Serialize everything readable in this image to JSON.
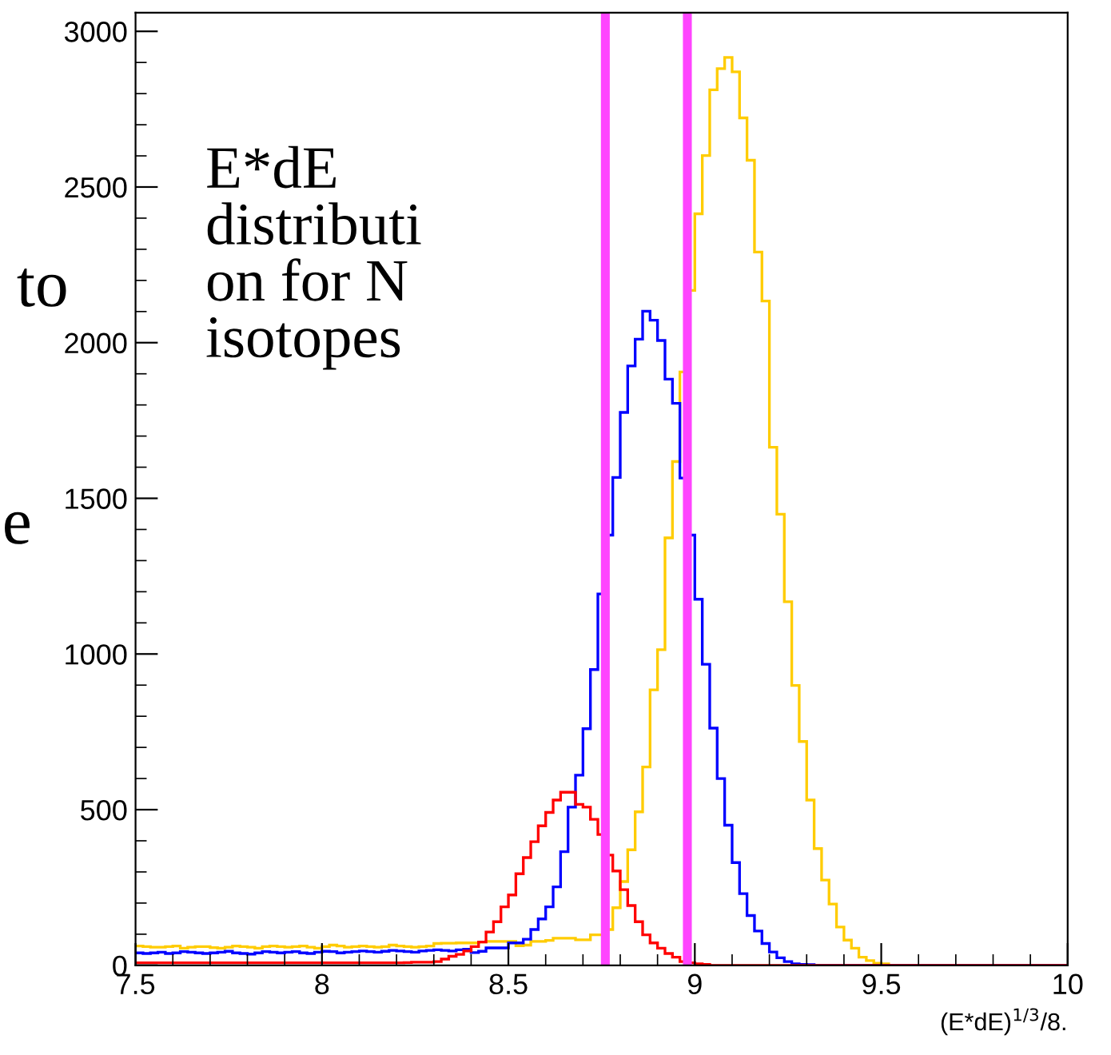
{
  "chart_data": {
    "type": "histogram",
    "xlabel": "(E*dE)$^{1/3}$/8.",
    "annotations": [
      "E*dE\ndistributi\non for N\nisotopes",
      "to",
      "e"
    ],
    "xlim": [
      7.5,
      10
    ],
    "ylim": [
      0,
      3060
    ],
    "xticks": [
      7.5,
      8,
      8.5,
      9,
      9.5,
      10
    ],
    "yticks": [
      0,
      500,
      1000,
      1500,
      2000,
      2500,
      3000
    ],
    "grid": false,
    "legend": false,
    "bins": [
      7.5,
      7.52,
      7.54,
      7.56,
      7.58,
      7.6,
      7.62,
      7.64,
      7.66,
      7.68,
      7.7,
      7.72,
      7.74,
      7.76,
      7.78,
      7.8,
      7.82,
      7.84,
      7.86,
      7.88,
      7.9,
      7.92,
      7.94,
      7.96,
      7.98,
      8.0,
      8.02,
      8.04,
      8.06,
      8.08,
      8.1,
      8.12,
      8.14,
      8.16,
      8.18,
      8.2,
      8.22,
      8.24,
      8.26,
      8.28,
      8.3,
      8.32,
      8.34,
      8.36,
      8.38,
      8.4,
      8.42,
      8.44,
      8.46,
      8.48,
      8.5,
      8.52,
      8.54,
      8.56,
      8.58,
      8.6,
      8.62,
      8.64,
      8.66,
      8.68,
      8.7,
      8.72,
      8.74,
      8.76,
      8.78,
      8.8,
      8.82,
      8.84,
      8.86,
      8.88,
      8.9,
      8.92,
      8.94,
      8.96,
      8.98,
      9.0,
      9.02,
      9.04,
      9.06,
      9.08,
      9.1,
      9.12,
      9.14,
      9.16,
      9.18,
      9.2,
      9.22,
      9.24,
      9.26,
      9.28,
      9.3,
      9.32,
      9.34,
      9.36,
      9.38,
      9.4,
      9.42,
      9.44,
      9.46,
      9.48,
      9.5,
      9.52,
      9.54,
      9.56,
      9.58,
      9.6,
      9.62,
      9.64,
      9.66,
      9.68,
      9.7,
      9.72,
      9.74,
      9.76,
      9.78,
      9.8,
      9.82,
      9.84,
      9.86,
      9.88,
      9.9,
      9.92,
      9.94,
      9.96,
      9.98,
      10.0
    ],
    "series": [
      {
        "color": "#ffcc00",
        "values": [
          62,
          60,
          58,
          58,
          60,
          62,
          55,
          58,
          60,
          60,
          57,
          55,
          58,
          62,
          60,
          58,
          55,
          60,
          62,
          60,
          58,
          60,
          62,
          58,
          55,
          60,
          65,
          62,
          58,
          60,
          62,
          60,
          58,
          60,
          65,
          62,
          60,
          58,
          60,
          62,
          70,
          71,
          71,
          72,
          72,
          72,
          75,
          77,
          77,
          77,
          77,
          63,
          65,
          77,
          77,
          80,
          87,
          87,
          87,
          82,
          82,
          98,
          98,
          115,
          185,
          269,
          371,
          493,
          637,
          885,
          1014,
          1373,
          1618,
          1906,
          2168,
          2414,
          2601,
          2812,
          2880,
          2916,
          2870,
          2722,
          2586,
          2291,
          2134,
          1664,
          1449,
          1168,
          899,
          719,
          531,
          375,
          274,
          197,
          123,
          81,
          55,
          26,
          15,
          7,
          5,
          0,
          0,
          0,
          0,
          0,
          0,
          0,
          0,
          0,
          0,
          0,
          0,
          0,
          0,
          0,
          0,
          0,
          0,
          0,
          0,
          0,
          0,
          0,
          0
        ]
      },
      {
        "color": "#0000ff",
        "values": [
          40,
          38,
          40,
          42,
          38,
          40,
          44,
          42,
          40,
          38,
          40,
          42,
          45,
          40,
          38,
          36,
          40,
          44,
          42,
          40,
          42,
          44,
          40,
          38,
          42,
          45,
          44,
          40,
          42,
          44,
          46,
          44,
          42,
          45,
          48,
          46,
          44,
          42,
          46,
          48,
          50,
          48,
          46,
          50,
          52,
          41,
          45,
          56,
          56,
          56,
          72,
          72,
          84,
          115,
          149,
          188,
          252,
          365,
          508,
          611,
          760,
          950,
          1193,
          1382,
          1567,
          1776,
          1925,
          2011,
          2101,
          2072,
          2007,
          1883,
          1805,
          1565,
          1382,
          1176,
          967,
          762,
          600,
          450,
          330,
          230,
          160,
          110,
          70,
          43,
          24,
          12,
          5,
          3,
          2,
          0,
          0,
          0,
          0,
          0,
          0,
          0,
          0,
          0,
          0,
          0,
          0,
          0,
          0,
          0,
          0,
          0,
          0,
          0,
          0,
          0,
          0,
          0,
          0,
          0,
          0,
          0,
          0,
          0,
          0,
          0,
          0,
          0,
          0
        ]
      },
      {
        "color": "#ff0000",
        "values": [
          8,
          8,
          8,
          8,
          8,
          8,
          8,
          8,
          8,
          8,
          8,
          8,
          8,
          8,
          8,
          8,
          8,
          8,
          8,
          8,
          8,
          8,
          8,
          8,
          8,
          8,
          8,
          8,
          8,
          8,
          8,
          8,
          8,
          8,
          8,
          8,
          9,
          10,
          10,
          10,
          12,
          20,
          29,
          35,
          46,
          60,
          75,
          107,
          140,
          188,
          226,
          294,
          346,
          397,
          448,
          491,
          531,
          556,
          556,
          517,
          508,
          469,
          420,
          354,
          303,
          243,
          192,
          140,
          98,
          72,
          55,
          38,
          26,
          12,
          8,
          5,
          3,
          0,
          0,
          0,
          0,
          0,
          0,
          0,
          0,
          0,
          0,
          0,
          0,
          0,
          0,
          0,
          0,
          0,
          0,
          0,
          0,
          0,
          0,
          0,
          0,
          0,
          0,
          0,
          0,
          0,
          0,
          0,
          0,
          0,
          0,
          0,
          0,
          0,
          0,
          0,
          0,
          0,
          0,
          0,
          0,
          0,
          0,
          0,
          0
        ]
      }
    ],
    "ref_lines": [
      {
        "axis": "x",
        "value": 8.76,
        "label": null,
        "color": "#ff44ff"
      },
      {
        "axis": "x",
        "value": 8.98,
        "label": null,
        "color": "#ff44ff"
      }
    ]
  }
}
